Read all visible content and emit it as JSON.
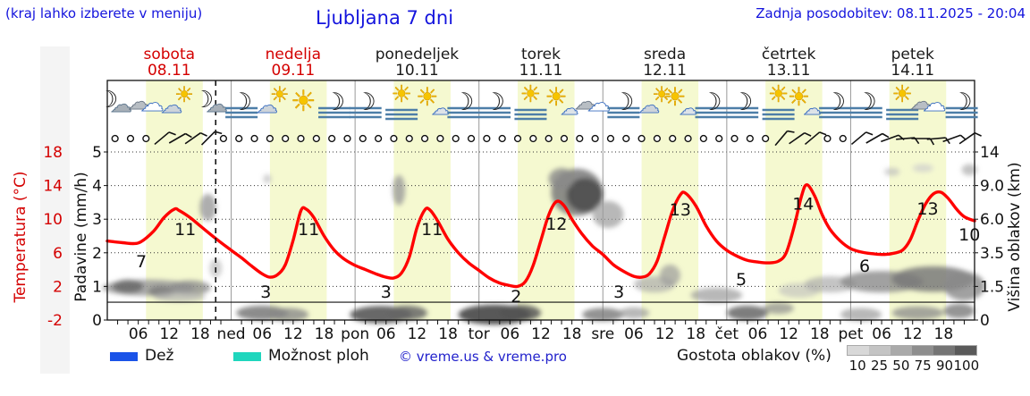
{
  "header": {
    "hint": "(kraj lahko izberete v meniju)",
    "title": "Ljubljana 7 dni",
    "updated": "Zadnja posodobitev: 08.11.2025 - 20:04"
  },
  "colors": {
    "accent_blue": "#1414dd",
    "weekend_red": "#d40000",
    "weekday_dark": "#1a1a1a",
    "day_band": "#f5f9d0",
    "temp_curve": "#ff0000",
    "grid": "#333333",
    "day_separator": "#999999"
  },
  "days": [
    {
      "name": "sobota",
      "date": "08.11",
      "color": "#d40000"
    },
    {
      "name": "nedelja",
      "date": "09.11",
      "color": "#d40000"
    },
    {
      "name": "ponedeljek",
      "date": "10.11",
      "color": "#1a1a1a"
    },
    {
      "name": "torek",
      "date": "11.11",
      "color": "#1a1a1a"
    },
    {
      "name": "sreda",
      "date": "12.11",
      "color": "#1a1a1a"
    },
    {
      "name": "četrtek",
      "date": "13.11",
      "color": "#1a1a1a"
    },
    {
      "name": "petek",
      "date": "14.11",
      "color": "#1a1a1a"
    }
  ],
  "chart_data": {
    "type": "line",
    "title": "Ljubljana 7 dni meteogram",
    "x_range_hours": [
      0,
      168
    ],
    "left_axis_temp": {
      "label": "Temperatura (°C)",
      "ticks": [
        "18",
        "14",
        "10",
        "6",
        "2",
        "-2"
      ],
      "color": "#d40000"
    },
    "precip_axis": {
      "label": "Padavine (mm/h)",
      "ticks": [
        "5",
        "4",
        "3",
        "2",
        "1",
        "0"
      ],
      "color": "#111111"
    },
    "right_axis": {
      "label": "Višina oblakov (km)",
      "ticks": [
        "14",
        "9.0",
        "6.0",
        "3.5",
        "1.5",
        "0"
      ],
      "color": "#111111"
    },
    "x_hour_labels": [
      "06",
      "12",
      "18"
    ],
    "day_abbrevs": [
      "ned",
      "pon",
      "tor",
      "sre",
      "čet",
      "pet"
    ],
    "now_line_hour": 21,
    "day_band_hours": {
      "start": 7.5,
      "end": 18.5
    },
    "temperature": {
      "name": "Temperatura (°C)",
      "color": "#ff0000",
      "series": [
        [
          0,
          7.4
        ],
        [
          3,
          7.2
        ],
        [
          5,
          7.1
        ],
        [
          6.5,
          7.3
        ],
        [
          9,
          8.6
        ],
        [
          11,
          10.2
        ],
        [
          13,
          11.2
        ],
        [
          14,
          11
        ],
        [
          16,
          10.2
        ],
        [
          18,
          9.2
        ],
        [
          21,
          7.7
        ],
        [
          24,
          6.3
        ],
        [
          26,
          5.4
        ],
        [
          28,
          4.4
        ],
        [
          30,
          3.5
        ],
        [
          31.5,
          3.1
        ],
        [
          33,
          3.4
        ],
        [
          34.5,
          4.6
        ],
        [
          36,
          7.5
        ],
        [
          37.5,
          11
        ],
        [
          38.5,
          11.2
        ],
        [
          40,
          10.2
        ],
        [
          42,
          8
        ],
        [
          44,
          6.3
        ],
        [
          46,
          5.2
        ],
        [
          48,
          4.5
        ],
        [
          50,
          4
        ],
        [
          52,
          3.5
        ],
        [
          54,
          3.1
        ],
        [
          55.5,
          3
        ],
        [
          57,
          3.6
        ],
        [
          58.5,
          5.5
        ],
        [
          60,
          9
        ],
        [
          61.5,
          11.1
        ],
        [
          62.5,
          11.1
        ],
        [
          64,
          9.8
        ],
        [
          66,
          7.6
        ],
        [
          68,
          6
        ],
        [
          70,
          4.8
        ],
        [
          72,
          3.9
        ],
        [
          74,
          3
        ],
        [
          76,
          2.4
        ],
        [
          78,
          2.1
        ],
        [
          79.5,
          2
        ],
        [
          81,
          2.6
        ],
        [
          82.5,
          4.5
        ],
        [
          84,
          7.5
        ],
        [
          85.5,
          10.5
        ],
        [
          87,
          12.1
        ],
        [
          88.5,
          11.6
        ],
        [
          90,
          10
        ],
        [
          92,
          8.2
        ],
        [
          94,
          6.8
        ],
        [
          96,
          5.8
        ],
        [
          98,
          4.6
        ],
        [
          100,
          3.8
        ],
        [
          102,
          3.2
        ],
        [
          103.5,
          3.1
        ],
        [
          105,
          3.5
        ],
        [
          106.5,
          5
        ],
        [
          108,
          8
        ],
        [
          109.5,
          11
        ],
        [
          111,
          12.9
        ],
        [
          112,
          13.1
        ],
        [
          114,
          11.6
        ],
        [
          116,
          9.2
        ],
        [
          118,
          7.4
        ],
        [
          120,
          6.3
        ],
        [
          122,
          5.6
        ],
        [
          124,
          5.1
        ],
        [
          126,
          4.9
        ],
        [
          128,
          4.8
        ],
        [
          130,
          5
        ],
        [
          131.5,
          6
        ],
        [
          133,
          9
        ],
        [
          134.5,
          12.8
        ],
        [
          135.5,
          14.1
        ],
        [
          137,
          12.8
        ],
        [
          138.5,
          10.5
        ],
        [
          140,
          8.8
        ],
        [
          142,
          7.4
        ],
        [
          144,
          6.5
        ],
        [
          146,
          6.1
        ],
        [
          148,
          5.9
        ],
        [
          150,
          5.8
        ],
        [
          152,
          5.9
        ],
        [
          154,
          6.3
        ],
        [
          155.5,
          7.5
        ],
        [
          157,
          9.8
        ],
        [
          158.5,
          11.8
        ],
        [
          160,
          13
        ],
        [
          161.5,
          13.2
        ],
        [
          163,
          12.4
        ],
        [
          164.5,
          11.2
        ],
        [
          166,
          10.3
        ],
        [
          168,
          9.8
        ]
      ],
      "value_labels": [
        {
          "text": "7",
          "t": 6.6,
          "at_temp": 5.0
        },
        {
          "text": "11",
          "t": 15.1,
          "at_temp": 8.85
        },
        {
          "text": "3",
          "t": 30.7,
          "at_temp": 1.4
        },
        {
          "text": "11",
          "t": 39.0,
          "at_temp": 8.85
        },
        {
          "text": "3",
          "t": 54.0,
          "at_temp": 1.4
        },
        {
          "text": "11",
          "t": 62.9,
          "at_temp": 8.85
        },
        {
          "text": "2",
          "t": 79.2,
          "at_temp": 0.87
        },
        {
          "text": "12",
          "t": 87.0,
          "at_temp": 9.49
        },
        {
          "text": "3",
          "t": 99.1,
          "at_temp": 1.4
        },
        {
          "text": "13",
          "t": 111.0,
          "at_temp": 11.2
        },
        {
          "text": "5",
          "t": 122.8,
          "at_temp": 2.89
        },
        {
          "text": "14",
          "t": 134.8,
          "at_temp": 11.9
        },
        {
          "text": "6",
          "t": 146.7,
          "at_temp": 4.49
        },
        {
          "text": "13",
          "t": 158.9,
          "at_temp": 11.3
        },
        {
          "text": "10",
          "t": 167.0,
          "at_temp": 8.2
        }
      ]
    },
    "weather_icons": [
      {
        "t": 1.5,
        "type": "moon-cloud"
      },
      {
        "t": 7.5,
        "type": "clouds"
      },
      {
        "t": 13.5,
        "type": "cloud-sun"
      },
      {
        "t": 20,
        "type": "moon-cloud"
      },
      {
        "t": 26,
        "type": "moon-fog"
      },
      {
        "t": 32,
        "type": "cloud-sun"
      },
      {
        "t": 38,
        "type": "sun"
      },
      {
        "t": 44,
        "type": "moon-fog"
      },
      {
        "t": 50,
        "type": "moon-fog"
      },
      {
        "t": 57,
        "type": "sun-fog"
      },
      {
        "t": 63,
        "type": "sun-cloud"
      },
      {
        "t": 69,
        "type": "moon-fog"
      },
      {
        "t": 75,
        "type": "moon-fog"
      },
      {
        "t": 82,
        "type": "sun-fog"
      },
      {
        "t": 88,
        "type": "sun-cloud"
      },
      {
        "t": 94,
        "type": "clouds"
      },
      {
        "t": 100,
        "type": "moon-fog"
      },
      {
        "t": 106,
        "type": "cloud-sun"
      },
      {
        "t": 111,
        "type": "sun-cloud"
      },
      {
        "t": 117,
        "type": "moon-fog"
      },
      {
        "t": 123,
        "type": "moon-fog"
      },
      {
        "t": 130,
        "type": "sun-fog"
      },
      {
        "t": 135,
        "type": "sun-cloud"
      },
      {
        "t": 141,
        "type": "moon-fog"
      },
      {
        "t": 147,
        "type": "moon-fog"
      },
      {
        "t": 154,
        "type": "sun-fog"
      },
      {
        "t": 159,
        "type": "clouds"
      },
      {
        "t": 165.5,
        "type": "moon-fog"
      }
    ],
    "wind": {
      "start_hour": 1.5,
      "step_hours": 3,
      "count": 56,
      "barbs": [
        {
          "t": 10.5,
          "rot": 50
        },
        {
          "t": 13.5,
          "rot": 60
        },
        {
          "t": 16.5,
          "rot": 55
        },
        {
          "t": 19.5,
          "rot": 45
        },
        {
          "t": 130.5,
          "rot": 40
        },
        {
          "t": 133.5,
          "rot": 55
        },
        {
          "t": 136.5,
          "rot": 50
        },
        {
          "t": 145.5,
          "rot": 50
        },
        {
          "t": 148.5,
          "rot": 60
        },
        {
          "t": 151.5,
          "rot": 70
        },
        {
          "t": 154.5,
          "rot": 85
        },
        {
          "t": 157.5,
          "rot": 90
        },
        {
          "t": 160.5,
          "rot": 85
        },
        {
          "t": 163.5,
          "rot": 70
        },
        {
          "t": 166.5,
          "rot": 55
        }
      ]
    },
    "cloud_blobs": [
      [
        8,
        0.96,
        9,
        0.24,
        "#9a9a9a",
        0.85
      ],
      [
        4,
        1.0,
        3,
        0.2,
        "#6a6a6a",
        0.85
      ],
      [
        10.5,
        0.85,
        2.5,
        0.17,
        "#7a7a7a",
        0.8
      ],
      [
        16,
        0.96,
        4,
        0.22,
        "#8d8d8d",
        0.8
      ],
      [
        14,
        0.69,
        5,
        0.15,
        "#b0b0b0",
        0.7
      ],
      [
        19.5,
        3.35,
        1.6,
        0.4,
        "#9a9a9a",
        0.8
      ],
      [
        21,
        1.54,
        1.2,
        0.28,
        "#bdbdbd",
        0.7
      ],
      [
        31,
        4.2,
        0.8,
        0.14,
        "#bdbdbd",
        0.7
      ],
      [
        30,
        0.21,
        5,
        0.22,
        "#787878",
        0.85
      ],
      [
        35,
        0.16,
        4,
        0.2,
        "#8a8a8a",
        0.8
      ],
      [
        53,
        0.16,
        6,
        0.26,
        "#565656",
        0.9
      ],
      [
        58,
        0.21,
        4,
        0.22,
        "#666666",
        0.85
      ],
      [
        56.5,
        3.86,
        1.2,
        0.45,
        "#9a9a9a",
        0.8
      ],
      [
        75,
        0.16,
        7,
        0.3,
        "#454545",
        0.9
      ],
      [
        80,
        0.21,
        4,
        0.24,
        "#555555",
        0.85
      ],
      [
        91,
        3.8,
        5,
        0.7,
        "#7a7a7a",
        0.85
      ],
      [
        92.5,
        3.72,
        3.5,
        0.5,
        "#4f4f4f",
        0.9
      ],
      [
        88,
        4.2,
        2.5,
        0.32,
        "#8a8a8a",
        0.8
      ],
      [
        97,
        3.14,
        3,
        0.4,
        "#9a9a9a",
        0.7
      ],
      [
        96,
        0.16,
        4,
        0.2,
        "#787878",
        0.8
      ],
      [
        102,
        0.21,
        3,
        0.17,
        "#9a9a9a",
        0.7
      ],
      [
        106,
        1.06,
        4,
        0.24,
        "#ababab",
        0.7
      ],
      [
        109,
        1.33,
        2,
        0.32,
        "#9a9a9a",
        0.7
      ],
      [
        118,
        0.74,
        5,
        0.22,
        "#9a9a9a",
        0.7
      ],
      [
        124,
        0.21,
        4,
        0.22,
        "#666666",
        0.85
      ],
      [
        130,
        0.35,
        3,
        0.17,
        "#8a8a8a",
        0.7
      ],
      [
        134,
        0.88,
        4,
        0.22,
        "#bdbdbd",
        0.6
      ],
      [
        140,
        1.06,
        5,
        0.24,
        "#ababab",
        0.7
      ],
      [
        150,
        1.14,
        8,
        0.32,
        "#8a8a8a",
        0.8
      ],
      [
        160,
        1.22,
        8,
        0.38,
        "#7a7a7a",
        0.85
      ],
      [
        166,
        1.01,
        4,
        0.43,
        "#8a8a8a",
        0.8
      ],
      [
        146,
        0.16,
        4,
        0.2,
        "#9a9a9a",
        0.7
      ],
      [
        157,
        0.21,
        5,
        0.2,
        "#8a8a8a",
        0.75
      ],
      [
        165,
        0.27,
        3,
        0.22,
        "#7a7a7a",
        0.8
      ],
      [
        152,
        4.41,
        1.5,
        0.12,
        "#bdbdbd",
        0.7
      ],
      [
        158,
        4.52,
        2,
        0.12,
        "#cdcdcd",
        0.7
      ],
      [
        167,
        4.47,
        1.5,
        0.17,
        "#ababab",
        0.7
      ]
    ]
  },
  "legend": {
    "rain_label": "Dež",
    "rain_color": "#1a53e8",
    "showers_label": "Možnost ploh",
    "showers_color": "#1fd6bd",
    "copyright": "© vreme.us & vreme.pro",
    "cloud_scale": {
      "label": "Gostota oblakov (%)",
      "stops": [
        {
          "value": "10",
          "color": "#d8d8d8"
        },
        {
          "value": "25",
          "color": "#c4c4c4"
        },
        {
          "value": "50",
          "color": "#aaaaaa"
        },
        {
          "value": "75",
          "color": "#8e8e8e"
        },
        {
          "value": "90",
          "color": "#757575"
        },
        {
          "value": "100",
          "color": "#5a5a5a"
        }
      ]
    }
  }
}
